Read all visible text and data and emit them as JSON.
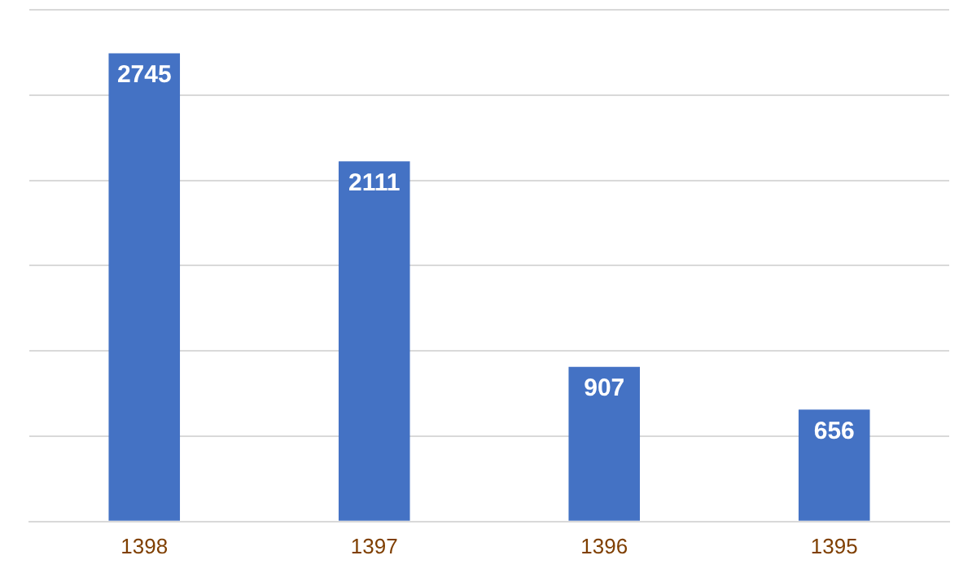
{
  "chart_data": {
    "type": "bar",
    "categories": [
      "1398",
      "1397",
      "1396",
      "1395"
    ],
    "values": [
      2745,
      2111,
      907,
      656
    ],
    "color": "#4472c4",
    "ylim": [
      0,
      3000
    ],
    "yticks": [
      {
        "value": 0,
        "label": null
      },
      {
        "value": 500,
        "label": null
      },
      {
        "value": 1000,
        "label": null
      },
      {
        "value": 1500,
        "label": null
      },
      {
        "value": 2000,
        "label": null
      },
      {
        "value": 2500,
        "label": null
      },
      {
        "value": 3000,
        "label": null
      }
    ],
    "grid": "y",
    "tick_labels": "x",
    "data_labels": true,
    "legend": false
  }
}
